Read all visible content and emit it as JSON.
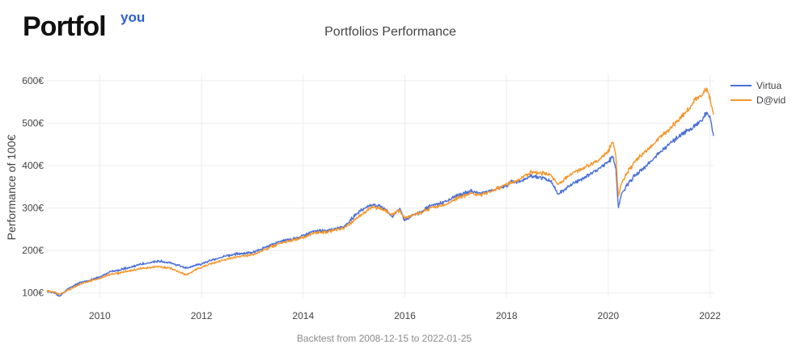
{
  "logo": {
    "main": "Portfol",
    "sup": "you"
  },
  "chart_data": {
    "type": "line",
    "title": "Portfolios Performance",
    "xlabel": "",
    "ylabel": "Performance of 100€",
    "caption": "Backtest from 2008-12-15 to 2022-01-25",
    "xlim": [
      2008.96,
      2022.07
    ],
    "ylim": [
      90,
      615
    ],
    "x_ticks": [
      2010,
      2012,
      2014,
      2016,
      2018,
      2020,
      2022
    ],
    "x_tick_labels": [
      "2010",
      "2012",
      "2014",
      "2016",
      "2018",
      "2020",
      "2022"
    ],
    "y_ticks": [
      100,
      200,
      300,
      400,
      500,
      600
    ],
    "y_tick_labels": [
      "100€",
      "200€",
      "300€",
      "400€",
      "500€",
      "600€"
    ],
    "grid": true,
    "legend_position": "top-right",
    "series": [
      {
        "name": "Virtua",
        "color": "#4a6fd8",
        "x": [
          2008.96,
          2009.1,
          2009.2,
          2009.4,
          2009.6,
          2009.8,
          2010.0,
          2010.2,
          2010.4,
          2010.6,
          2010.8,
          2011.0,
          2011.2,
          2011.4,
          2011.55,
          2011.7,
          2011.9,
          2012.0,
          2012.2,
          2012.5,
          2012.7,
          2013.0,
          2013.3,
          2013.5,
          2013.8,
          2014.0,
          2014.2,
          2014.5,
          2014.8,
          2015.0,
          2015.2,
          2015.35,
          2015.5,
          2015.65,
          2015.75,
          2015.9,
          2016.0,
          2016.1,
          2016.3,
          2016.5,
          2016.8,
          2017.0,
          2017.3,
          2017.5,
          2017.8,
          2018.0,
          2018.1,
          2018.2,
          2018.5,
          2018.75,
          2018.9,
          2019.0,
          2019.2,
          2019.5,
          2019.8,
          2020.0,
          2020.1,
          2020.15,
          2020.2,
          2020.25,
          2020.4,
          2020.6,
          2020.8,
          2021.0,
          2021.2,
          2021.4,
          2021.6,
          2021.7,
          2021.85,
          2021.92,
          2022.0,
          2022.07
        ],
        "values": [
          105,
          100,
          92,
          112,
          124,
          130,
          138,
          150,
          155,
          160,
          168,
          172,
          175,
          170,
          165,
          158,
          165,
          168,
          178,
          188,
          192,
          195,
          210,
          220,
          228,
          235,
          245,
          248,
          255,
          280,
          300,
          308,
          305,
          295,
          280,
          300,
          270,
          280,
          290,
          305,
          315,
          328,
          340,
          335,
          345,
          350,
          365,
          360,
          375,
          370,
          360,
          332,
          350,
          370,
          390,
          410,
          420,
          390,
          300,
          330,
          360,
          385,
          405,
          430,
          450,
          470,
          485,
          495,
          505,
          525,
          515,
          470
        ]
      },
      {
        "name": "D@vid",
        "color": "#f5962a",
        "x": [
          2008.96,
          2009.1,
          2009.2,
          2009.4,
          2009.6,
          2009.8,
          2010.0,
          2010.2,
          2010.4,
          2010.6,
          2010.8,
          2011.0,
          2011.2,
          2011.4,
          2011.55,
          2011.7,
          2011.9,
          2012.0,
          2012.2,
          2012.5,
          2012.7,
          2013.0,
          2013.3,
          2013.5,
          2013.8,
          2014.0,
          2014.2,
          2014.5,
          2014.8,
          2015.0,
          2015.2,
          2015.35,
          2015.5,
          2015.65,
          2015.75,
          2015.9,
          2016.0,
          2016.1,
          2016.3,
          2016.5,
          2016.8,
          2017.0,
          2017.3,
          2017.5,
          2017.8,
          2018.0,
          2018.1,
          2018.2,
          2018.5,
          2018.75,
          2018.9,
          2019.0,
          2019.2,
          2019.5,
          2019.8,
          2020.0,
          2020.1,
          2020.15,
          2020.2,
          2020.25,
          2020.4,
          2020.6,
          2020.8,
          2021.0,
          2021.2,
          2021.4,
          2021.6,
          2021.7,
          2021.85,
          2021.92,
          2022.0,
          2022.07
        ],
        "values": [
          105,
          102,
          97,
          108,
          120,
          128,
          134,
          144,
          148,
          152,
          158,
          160,
          162,
          158,
          150,
          142,
          155,
          160,
          170,
          180,
          185,
          190,
          205,
          215,
          225,
          230,
          240,
          245,
          252,
          270,
          290,
          302,
          300,
          292,
          285,
          295,
          275,
          282,
          288,
          300,
          308,
          322,
          335,
          330,
          345,
          355,
          360,
          365,
          385,
          382,
          375,
          355,
          375,
          395,
          410,
          435,
          455,
          420,
          325,
          355,
          390,
          420,
          440,
          465,
          485,
          510,
          535,
          555,
          565,
          582,
          560,
          520
        ]
      }
    ]
  }
}
